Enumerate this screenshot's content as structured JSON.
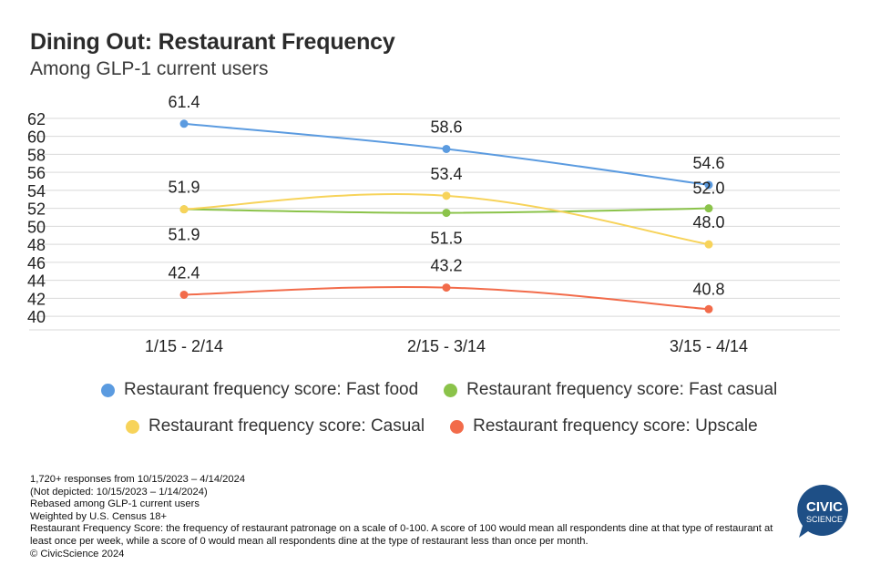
{
  "header": {
    "title": "Dining Out: Restaurant Frequency",
    "subtitle": "Among GLP-1 current users"
  },
  "chart_data": {
    "type": "line",
    "categories": [
      "1/15 - 2/14",
      "2/15 - 3/14",
      "3/15 - 4/14"
    ],
    "y_ticks": [
      40,
      42,
      44,
      46,
      48,
      50,
      52,
      54,
      56,
      58,
      60,
      62
    ],
    "ylim": [
      38.5,
      63
    ],
    "grid": true,
    "legend_position": "bottom",
    "series": [
      {
        "name": "Restaurant frequency score: Fast food",
        "color": "#5b9be0",
        "values": [
          61.4,
          58.6,
          54.6
        ],
        "labels": [
          "61.4",
          "58.6",
          "54.6"
        ]
      },
      {
        "name": "Restaurant frequency score: Fast casual",
        "color": "#8bc34a",
        "values": [
          51.9,
          51.5,
          52.0
        ],
        "labels": [
          "51.9",
          "51.5",
          "52.0"
        ]
      },
      {
        "name": "Restaurant frequency score: Casual",
        "color": "#f7d35a",
        "values": [
          51.9,
          53.4,
          48.0
        ],
        "labels": [
          "51.9",
          "53.4",
          "48.0"
        ]
      },
      {
        "name": "Restaurant frequency score: Upscale",
        "color": "#f26b4a",
        "values": [
          42.4,
          43.2,
          40.8
        ],
        "labels": [
          "42.4",
          "43.2",
          "40.8"
        ]
      }
    ]
  },
  "footnotes": [
    "1,720+ responses from 10/15/2023 – 4/14/2024",
    "(Not depicted: 10/15/2023 – 1/14/2024)",
    "Rebased among GLP-1 current users",
    "Weighted by U.S. Census 18+",
    "Restaurant Frequency Score: the frequency of restaurant patronage on a scale of 0-100. A score of 100 would mean all respondents dine at that type of restaurant at least once per week, while a score of 0 would mean all respondents dine at the type of restaurant less than once per month.",
    "© CivicScience 2024"
  ],
  "logo": {
    "line1": "CIVIC",
    "line2": "SCIENCE",
    "color": "#1e4f86"
  }
}
